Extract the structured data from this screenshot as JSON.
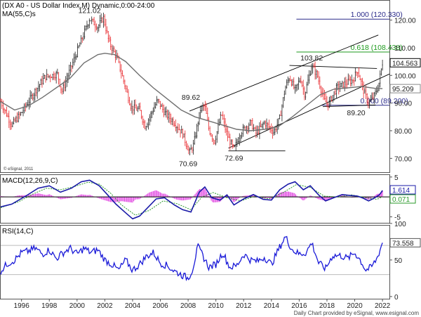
{
  "colors": {
    "up": "#222222",
    "down": "#e8262a",
    "ma": "#707070",
    "channel": "#000000",
    "fib_blue": "#2a2a8a",
    "fib_green": "#1d9a1d",
    "macd_line": "#1a1aa8",
    "macd_signal": "#2b9a2b",
    "macd_hist": "#e040e0",
    "rsi_line": "#1a1ad8",
    "panel_border": "#555555",
    "axis_text": "#222222"
  },
  "chart_data": [
    {
      "type": "candlestick",
      "title": "(DX A0 - US Dollar Index,M) Dynamic,0:00-24:00",
      "indicator_label": "MA(55,C)s",
      "credit": "© eSignal, 2011",
      "x_range": [
        1994.5,
        2022.5
      ],
      "ylim": [
        65,
        127
      ],
      "yticks": [
        70.0,
        80.0,
        90.0,
        100.0,
        110.0,
        120.0
      ],
      "ytick_labels": [
        "70.00",
        "80.00",
        "90.00",
        "100.00",
        "110.00",
        "120.00"
      ],
      "last_price": "104.563",
      "ma_last": "95.209",
      "annotations": [
        {
          "text": "121.02",
          "x": 2000.9,
          "y": 121.02
        },
        {
          "text": "103.82",
          "x": 2016.9,
          "y": 103.82
        },
        {
          "text": "89.62",
          "x": 2008.2,
          "y": 89.62
        },
        {
          "text": "70.69",
          "x": 2008.0,
          "y": 70.69
        },
        {
          "text": "72.69",
          "x": 2011.3,
          "y": 72.69
        },
        {
          "text": "89.20",
          "x": 2020.1,
          "y": 89.2
        }
      ],
      "fib_levels": [
        {
          "label": "1.000 (120.330)",
          "value": 120.33,
          "color": "fib_blue"
        },
        {
          "label": "0.618 (108.438)",
          "value": 108.438,
          "color": "fib_green"
        },
        {
          "label": "0.000 (89.200)",
          "value": 89.2,
          "color": "fib_blue"
        }
      ],
      "trendlines": [
        {
          "x1": 2008.1,
          "y1": 87.1,
          "x2": 2021.7,
          "y2": 114.6
        },
        {
          "x1": 2010.9,
          "y1": 73.7,
          "x2": 2022.5,
          "y2": 100.5
        },
        {
          "x1": 2015.3,
          "y1": 103.6,
          "x2": 2021.6,
          "y2": 102.5
        },
        {
          "x1": 2017.7,
          "y1": 88.7,
          "x2": 2021.5,
          "y2": 89.3
        },
        {
          "x1": 2010.9,
          "y1": 72.7,
          "x2": 2015.0,
          "y2": 72.7
        }
      ],
      "price_path": [
        [
          1994.5,
          90.5
        ],
        [
          1995.3,
          82.0
        ],
        [
          1996.0,
          86.5
        ],
        [
          1997.0,
          94.5
        ],
        [
          1997.7,
          99.5
        ],
        [
          1998.6,
          100.5
        ],
        [
          1998.9,
          94.0
        ],
        [
          1999.5,
          102.0
        ],
        [
          2000.3,
          112.5
        ],
        [
          2000.9,
          120.5
        ],
        [
          2001.5,
          117.5
        ],
        [
          2001.9,
          121.0
        ],
        [
          2002.3,
          112.0
        ],
        [
          2002.9,
          106.0
        ],
        [
          2003.5,
          95.5
        ],
        [
          2003.9,
          88.5
        ],
        [
          2004.5,
          87.5
        ],
        [
          2004.9,
          81.5
        ],
        [
          2005.8,
          91.0
        ],
        [
          2006.3,
          86.5
        ],
        [
          2007.0,
          83.0
        ],
        [
          2007.6,
          79.0
        ],
        [
          2008.1,
          72.0
        ],
        [
          2008.4,
          75.0
        ],
        [
          2008.9,
          88.0
        ],
        [
          2009.2,
          89.0
        ],
        [
          2009.5,
          80.5
        ],
        [
          2009.9,
          76.0
        ],
        [
          2010.4,
          86.0
        ],
        [
          2010.8,
          78.5
        ],
        [
          2011.3,
          73.0
        ],
        [
          2011.8,
          79.5
        ],
        [
          2012.5,
          83.0
        ],
        [
          2012.9,
          79.0
        ],
        [
          2013.5,
          83.0
        ],
        [
          2014.2,
          79.5
        ],
        [
          2014.6,
          84.5
        ],
        [
          2015.0,
          95.5
        ],
        [
          2015.3,
          99.5
        ],
        [
          2015.7,
          94.5
        ],
        [
          2016.1,
          99.0
        ],
        [
          2016.4,
          93.0
        ],
        [
          2016.9,
          103.5
        ],
        [
          2017.3,
          100.0
        ],
        [
          2017.8,
          91.0
        ],
        [
          2018.1,
          89.5
        ],
        [
          2018.7,
          95.5
        ],
        [
          2019.3,
          97.0
        ],
        [
          2019.9,
          98.5
        ],
        [
          2020.2,
          102.0
        ],
        [
          2020.7,
          93.5
        ],
        [
          2021.0,
          90.0
        ],
        [
          2021.4,
          92.5
        ],
        [
          2021.7,
          96.0
        ],
        [
          2022.0,
          104.563
        ]
      ],
      "ma_path": [
        [
          1994.5,
          90.5
        ],
        [
          1995.5,
          87.5
        ],
        [
          1996.5,
          89.0
        ],
        [
          1997.5,
          92.0
        ],
        [
          1998.5,
          95.5
        ],
        [
          1999.5,
          99.0
        ],
        [
          2000.5,
          104.5
        ],
        [
          2001.5,
          107.5
        ],
        [
          2002.0,
          108.0
        ],
        [
          2002.7,
          107.5
        ],
        [
          2003.5,
          105.0
        ],
        [
          2004.5,
          100.0
        ],
        [
          2005.5,
          95.5
        ],
        [
          2006.5,
          91.5
        ],
        [
          2007.5,
          87.5
        ],
        [
          2008.5,
          85.0
        ],
        [
          2009.5,
          83.5
        ],
        [
          2010.5,
          82.0
        ],
        [
          2011.5,
          80.5
        ],
        [
          2012.5,
          80.0
        ],
        [
          2013.5,
          80.5
        ],
        [
          2014.5,
          81.5
        ],
        [
          2015.5,
          85.0
        ],
        [
          2016.5,
          89.0
        ],
        [
          2017.5,
          93.0
        ],
        [
          2018.5,
          95.0
        ],
        [
          2019.5,
          95.5
        ],
        [
          2020.5,
          96.0
        ],
        [
          2021.5,
          95.3
        ],
        [
          2022.0,
          95.209
        ]
      ]
    },
    {
      "type": "line",
      "title": "MACD(12,26,9,C)",
      "ylim": [
        -6.5,
        5.5
      ],
      "yticks": [
        5,
        0,
        -5
      ],
      "ytick_labels": [
        "5",
        "0",
        "-5"
      ],
      "zero_line": 0,
      "macd_last": "1.614",
      "signal_last": "0.071",
      "macd_path": [
        [
          1994.5,
          -2.5
        ],
        [
          1995.3,
          -1.8
        ],
        [
          1996.3,
          0.2
        ],
        [
          1997.2,
          2.2
        ],
        [
          1998.0,
          2.8
        ],
        [
          1998.8,
          1.2
        ],
        [
          1999.6,
          2.2
        ],
        [
          2000.3,
          3.8
        ],
        [
          2000.9,
          4.2
        ],
        [
          2001.6,
          2.8
        ],
        [
          2002.2,
          0.5
        ],
        [
          2002.8,
          -1.8
        ],
        [
          2003.5,
          -4.0
        ],
        [
          2004.0,
          -5.5
        ],
        [
          2004.5,
          -4.8
        ],
        [
          2005.0,
          -3.0
        ],
        [
          2005.7,
          -0.5
        ],
        [
          2006.3,
          -0.2
        ],
        [
          2007.0,
          -2.0
        ],
        [
          2007.6,
          -3.2
        ],
        [
          2008.2,
          -3.8
        ],
        [
          2008.8,
          1.2
        ],
        [
          2009.2,
          2.5
        ],
        [
          2009.7,
          -0.2
        ],
        [
          2010.3,
          -0.8
        ],
        [
          2010.8,
          0.5
        ],
        [
          2011.3,
          -2.0
        ],
        [
          2012.0,
          -0.5
        ],
        [
          2012.7,
          0.6
        ],
        [
          2013.4,
          -0.6
        ],
        [
          2014.0,
          -0.8
        ],
        [
          2014.6,
          1.8
        ],
        [
          2015.2,
          3.2
        ],
        [
          2015.7,
          3.8
        ],
        [
          2016.3,
          1.8
        ],
        [
          2016.8,
          2.8
        ],
        [
          2017.4,
          0.5
        ],
        [
          2017.9,
          -1.0
        ],
        [
          2018.5,
          -0.2
        ],
        [
          2019.1,
          0.6
        ],
        [
          2019.6,
          0.4
        ],
        [
          2020.2,
          0.2
        ],
        [
          2020.6,
          -0.3
        ],
        [
          2021.0,
          -1.0
        ],
        [
          2021.4,
          -0.3
        ],
        [
          2021.8,
          0.6
        ],
        [
          2022.0,
          1.614
        ]
      ],
      "signal_path": [
        [
          1994.5,
          -2.7
        ],
        [
          1995.8,
          -1.2
        ],
        [
          1996.8,
          0.7
        ],
        [
          1997.8,
          2.2
        ],
        [
          1998.8,
          1.8
        ],
        [
          1999.8,
          2.6
        ],
        [
          2000.8,
          3.7
        ],
        [
          2001.6,
          3.2
        ],
        [
          2002.4,
          1.0
        ],
        [
          2003.2,
          -2.0
        ],
        [
          2004.2,
          -4.6
        ],
        [
          2005.2,
          -3.4
        ],
        [
          2006.2,
          -1.0
        ],
        [
          2007.2,
          -1.7
        ],
        [
          2008.2,
          -3.2
        ],
        [
          2009.0,
          0.0
        ],
        [
          2009.8,
          1.1
        ],
        [
          2010.8,
          -0.2
        ],
        [
          2011.8,
          -1.0
        ],
        [
          2012.8,
          0.2
        ],
        [
          2013.8,
          -0.5
        ],
        [
          2014.8,
          1.0
        ],
        [
          2015.8,
          3.1
        ],
        [
          2016.8,
          2.4
        ],
        [
          2017.8,
          0.2
        ],
        [
          2018.8,
          0.0
        ],
        [
          2019.8,
          0.5
        ],
        [
          2020.8,
          -0.2
        ],
        [
          2021.6,
          -0.6
        ],
        [
          2022.0,
          0.071
        ]
      ]
    },
    {
      "type": "line",
      "title": "RSI(14,C)",
      "ylim": [
        -3,
        97
      ],
      "yticks": [
        100,
        50,
        0
      ],
      "ytick_labels": [
        "100",
        "50",
        "0"
      ],
      "guide_lines": [
        70,
        30
      ],
      "rsi_last": "73.558",
      "rsi_path": [
        [
          1994.5,
          35
        ],
        [
          1995.0,
          45
        ],
        [
          1995.5,
          50
        ],
        [
          1996.0,
          60
        ],
        [
          1996.5,
          62
        ],
        [
          1997.0,
          66
        ],
        [
          1997.5,
          58
        ],
        [
          1998.0,
          64
        ],
        [
          1998.5,
          52
        ],
        [
          1999.0,
          60
        ],
        [
          1999.5,
          66
        ],
        [
          2000.0,
          58
        ],
        [
          2000.5,
          66
        ],
        [
          2001.0,
          60
        ],
        [
          2001.5,
          64
        ],
        [
          2002.0,
          50
        ],
        [
          2002.5,
          44
        ],
        [
          2003.0,
          36
        ],
        [
          2003.5,
          50
        ],
        [
          2004.0,
          36
        ],
        [
          2004.5,
          44
        ],
        [
          2005.0,
          55
        ],
        [
          2005.5,
          60
        ],
        [
          2006.0,
          46
        ],
        [
          2006.5,
          42
        ],
        [
          2007.0,
          35
        ],
        [
          2007.5,
          30
        ],
        [
          2008.0,
          25
        ],
        [
          2008.3,
          36
        ],
        [
          2008.7,
          68
        ],
        [
          2009.0,
          58
        ],
        [
          2009.5,
          40
        ],
        [
          2010.0,
          44
        ],
        [
          2010.5,
          60
        ],
        [
          2011.0,
          40
        ],
        [
          2011.5,
          42
        ],
        [
          2012.0,
          58
        ],
        [
          2012.5,
          50
        ],
        [
          2013.0,
          48
        ],
        [
          2013.5,
          54
        ],
        [
          2014.0,
          44
        ],
        [
          2014.5,
          64
        ],
        [
          2015.0,
          82
        ],
        [
          2015.5,
          64
        ],
        [
          2016.0,
          58
        ],
        [
          2016.5,
          60
        ],
        [
          2016.9,
          74
        ],
        [
          2017.4,
          46
        ],
        [
          2017.9,
          38
        ],
        [
          2018.4,
          56
        ],
        [
          2019.0,
          56
        ],
        [
          2019.5,
          52
        ],
        [
          2020.0,
          60
        ],
        [
          2020.4,
          50
        ],
        [
          2020.8,
          36
        ],
        [
          2021.2,
          40
        ],
        [
          2021.6,
          52
        ],
        [
          2022.0,
          73.558
        ]
      ]
    }
  ],
  "x_axis": {
    "labels": [
      "1996",
      "1998",
      "2000",
      "2002",
      "2004",
      "2006",
      "2008",
      "2010",
      "2012",
      "2014",
      "2016",
      "2018",
      "2020",
      "2022"
    ]
  },
  "footer": {
    "credit": "Daily Chart provided by eSignal, www.esignal.com"
  }
}
